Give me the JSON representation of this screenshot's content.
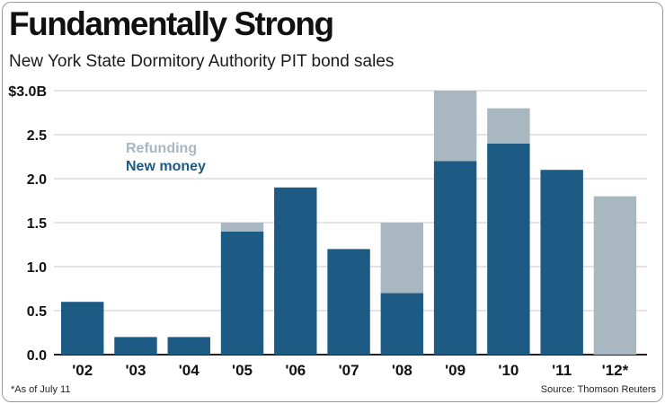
{
  "chart_data": {
    "type": "bar",
    "stacked": true,
    "title": "Fundamentally Strong",
    "subtitle": "New York State Dormitory Authority PIT bond sales",
    "categories": [
      "'02",
      "'03",
      "'04",
      "'05",
      "'06",
      "'07",
      "'08",
      "'09",
      "'10",
      "'11",
      "'12*"
    ],
    "series": [
      {
        "name": "New money",
        "color": "#1d5a84",
        "values": [
          0.6,
          0.2,
          0.2,
          1.4,
          1.9,
          1.2,
          0.7,
          2.2,
          2.4,
          2.1,
          0.0
        ]
      },
      {
        "name": "Refunding",
        "color": "#a9b7c1",
        "values": [
          0.0,
          0.0,
          0.0,
          0.1,
          0.0,
          0.0,
          0.8,
          0.8,
          0.4,
          0.0,
          1.8
        ]
      }
    ],
    "ylim": [
      0,
      3.0
    ],
    "yticks": [
      0.0,
      0.5,
      1.0,
      1.5,
      2.0,
      2.5,
      3.0
    ],
    "ytick_labels": [
      "0.0",
      "0.5",
      "1.0",
      "1.5",
      "2.0",
      "2.5",
      "$3.0B"
    ],
    "grid": true,
    "legend": {
      "position": "top-left",
      "entries": [
        "Refunding",
        "New money"
      ]
    },
    "footnote": "*As of July 11",
    "source": "Source: Thomson Reuters"
  }
}
